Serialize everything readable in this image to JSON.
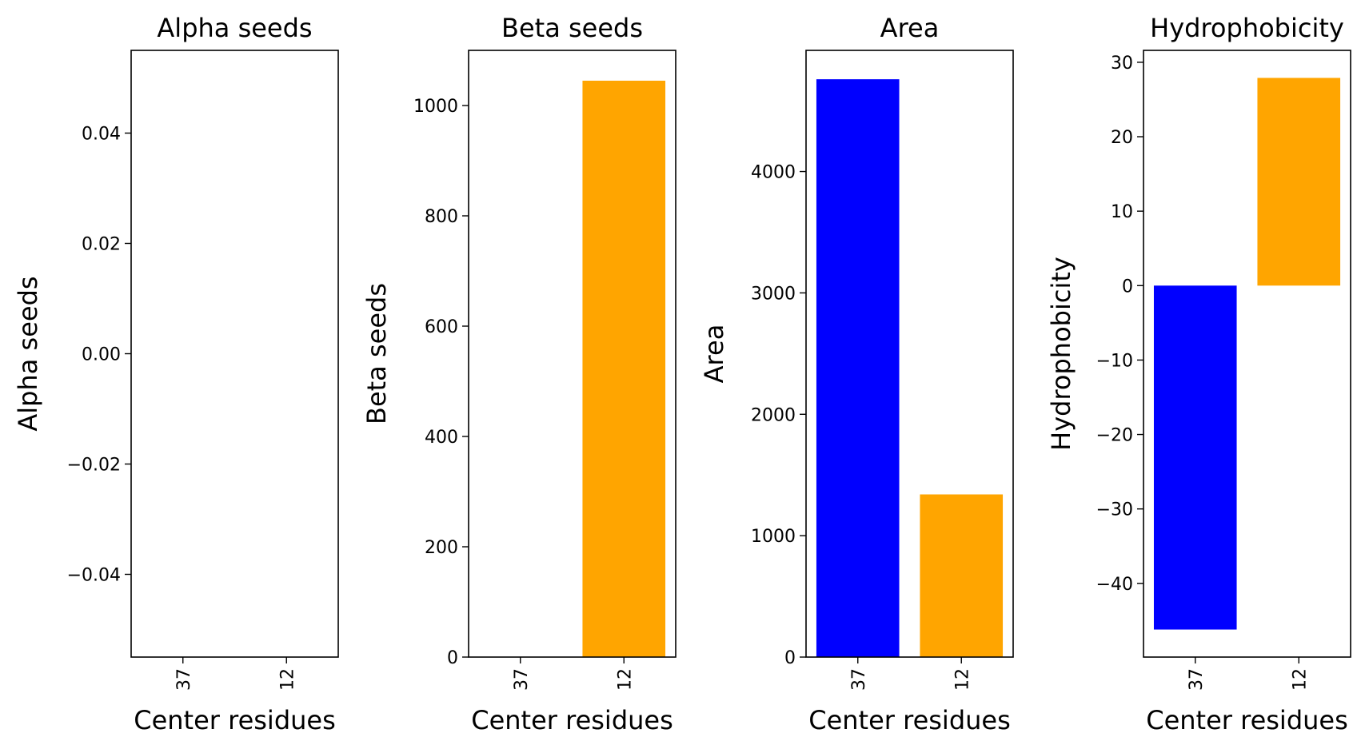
{
  "colors": {
    "bar_37": "#0000ff",
    "bar_12": "#ffa500"
  },
  "chart_data": [
    {
      "type": "bar",
      "title": "Alpha seeds",
      "xlabel": "Center residues",
      "ylabel": "Alpha seeds",
      "categories": [
        "37",
        "12"
      ],
      "values": [
        0,
        0
      ],
      "ylim": [
        -0.055,
        0.055
      ],
      "yticks": [
        -0.04,
        -0.02,
        0.0,
        0.02,
        0.04
      ],
      "ytick_labels": [
        "−0.04",
        "−0.02",
        "0.00",
        "0.02",
        "0.04"
      ],
      "grid": false
    },
    {
      "type": "bar",
      "title": "Beta seeds",
      "xlabel": "Center residues",
      "ylabel": "Beta seeds",
      "categories": [
        "37",
        "12"
      ],
      "values": [
        0,
        1045
      ],
      "ylim": [
        0,
        1100
      ],
      "yticks": [
        0,
        200,
        400,
        600,
        800,
        1000
      ],
      "ytick_labels": [
        "0",
        "200",
        "400",
        "600",
        "800",
        "1000"
      ],
      "grid": false
    },
    {
      "type": "bar",
      "title": "Area",
      "xlabel": "Center residues",
      "ylabel": "Area",
      "categories": [
        "37",
        "12"
      ],
      "values": [
        4760,
        1340
      ],
      "ylim": [
        0,
        4998
      ],
      "yticks": [
        0,
        1000,
        2000,
        3000,
        4000
      ],
      "ytick_labels": [
        "0",
        "1000",
        "2000",
        "3000",
        "4000"
      ],
      "grid": false
    },
    {
      "type": "bar",
      "title": "Hydrophobicity",
      "xlabel": "Center residues",
      "ylabel": "Hydrophobicity",
      "categories": [
        "37",
        "12"
      ],
      "values": [
        -46.2,
        27.9
      ],
      "ylim": [
        -49.9,
        31.6
      ],
      "yticks": [
        -40,
        -30,
        -20,
        -10,
        0,
        10,
        20,
        30
      ],
      "ytick_labels": [
        "−40",
        "−30",
        "−20",
        "−10",
        "0",
        "10",
        "20",
        "30"
      ],
      "grid": false
    }
  ]
}
